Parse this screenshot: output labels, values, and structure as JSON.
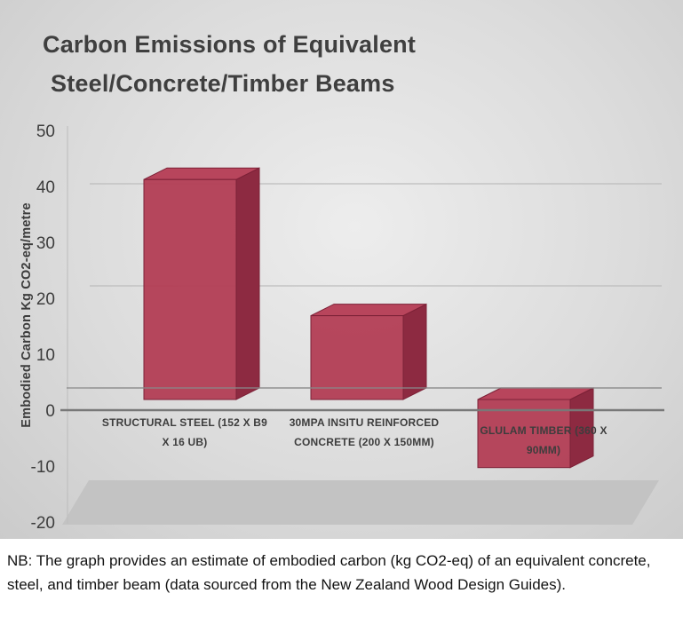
{
  "title": {
    "line1": "Carbon Emissions of Equivalent",
    "line2": "Steel/Concrete/Timber Beams"
  },
  "y_axis": {
    "label": "Embodied Carbon Kg CO2-eq/metre",
    "ticks": [
      50,
      40,
      30,
      20,
      10,
      0,
      -10,
      -20
    ]
  },
  "note": "NB: The graph provides an estimate of embodied carbon (kg CO2-eq) of an equivalent concrete, steel, and timber beam (data sourced from the New Zealand Wood Design Guides).",
  "colors": {
    "text": "#3d3d3d",
    "axis": "#787878",
    "grid": "#bdbdbd",
    "floor": "#c3c3c3",
    "bar_front": "#b23a52",
    "bar_side": "#8d2a41",
    "bar_top": "#b8455c",
    "bar_edge": "#7c2137"
  },
  "chart_data": {
    "type": "bar",
    "style": "3d-column",
    "title": "Carbon Emissions of Equivalent Steel/Concrete/Timber Beams",
    "xlabel": "",
    "ylabel": "Embodied Carbon Kg CO2-eq/metre",
    "ylim": [
      -20,
      50
    ],
    "tick_step": 10,
    "grid": true,
    "legend": false,
    "categories": [
      "STRUCTURAL STEEL (152 X B9 X 16 UB)",
      "30MPA INSITU REINFORCED CONCRETE (200 X 150MM)",
      "GLULAM TIMBER (360 X 90MM)"
    ],
    "category_label_lines": [
      [
        "STRUCTURAL STEEL (152 X B9",
        "X 16 UB)"
      ],
      [
        "30MPA INSITU REINFORCED",
        "CONCRETE (200 X 150MM)"
      ],
      [
        "GLULAM TIMBER (360 X",
        "90MM)"
      ]
    ],
    "category_ids": [
      "structural-steel",
      "reinforced-concrete",
      "glulam-timber"
    ],
    "values": [
      42,
      16,
      -13
    ]
  }
}
